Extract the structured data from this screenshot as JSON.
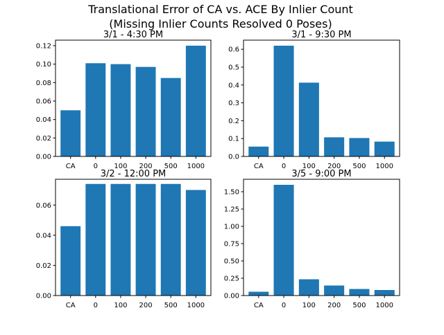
{
  "figure": {
    "title_line1": "Translational Error of CA vs. ACE By Inlier Count",
    "title_line2": "(Missing Inlier Counts Resolved 0 Poses)",
    "bar_color": "#1f77b4"
  },
  "chart_data": [
    {
      "type": "bar",
      "title": "3/1 - 4:30 PM",
      "categories": [
        "CA",
        "0",
        "100",
        "200",
        "500",
        "1000"
      ],
      "values": [
        0.05,
        0.101,
        0.1,
        0.097,
        0.085,
        0.12
      ],
      "ylim": [
        0,
        0.126
      ],
      "yticks": [
        0.0,
        0.02,
        0.04,
        0.06,
        0.08,
        0.1,
        0.12
      ],
      "ytick_labels": [
        "0.00",
        "0.02",
        "0.04",
        "0.06",
        "0.08",
        "0.10",
        "0.12"
      ]
    },
    {
      "type": "bar",
      "title": "3/1 - 9:30 PM",
      "categories": [
        "CA",
        "0",
        "100",
        "200",
        "500",
        "1000"
      ],
      "values": [
        0.055,
        0.62,
        0.413,
        0.107,
        0.103,
        0.083
      ],
      "ylim": [
        0,
        0.651
      ],
      "yticks": [
        0.0,
        0.1,
        0.2,
        0.3,
        0.4,
        0.5,
        0.6
      ],
      "ytick_labels": [
        "0.0",
        "0.1",
        "0.2",
        "0.3",
        "0.4",
        "0.5",
        "0.6"
      ]
    },
    {
      "type": "bar",
      "title": "3/2 - 12:00 PM",
      "categories": [
        "CA",
        "0",
        "100",
        "200",
        "500",
        "1000"
      ],
      "values": [
        0.046,
        0.074,
        0.074,
        0.074,
        0.074,
        0.07
      ],
      "ylim": [
        0,
        0.0771
      ],
      "yticks": [
        0.0,
        0.02,
        0.04,
        0.06
      ],
      "ytick_labels": [
        "0.00",
        "0.02",
        "0.04",
        "0.06"
      ]
    },
    {
      "type": "bar",
      "title": "3/5 - 9:00 PM",
      "categories": [
        "CA",
        "0",
        "100",
        "200",
        "500",
        "1000"
      ],
      "values": [
        0.055,
        1.6,
        0.235,
        0.145,
        0.095,
        0.08
      ],
      "ylim": [
        0,
        1.68
      ],
      "yticks": [
        0.0,
        0.25,
        0.5,
        0.75,
        1.0,
        1.25,
        1.5
      ],
      "ytick_labels": [
        "0.00",
        "0.25",
        "0.50",
        "0.75",
        "1.00",
        "1.25",
        "1.50"
      ]
    }
  ]
}
